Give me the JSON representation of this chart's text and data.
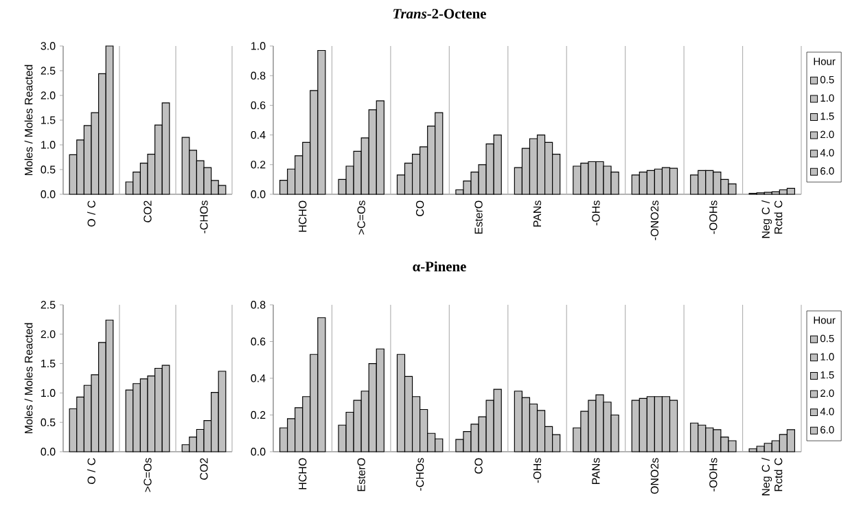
{
  "chart_data": [
    {
      "type": "bar",
      "ylabel": "Moles / Moles Reacted",
      "categories": [
        "O / C",
        "CO2",
        "-CHOs"
      ],
      "grid": "x",
      "ylim": [
        0,
        3
      ],
      "yticks": [
        {
          "value": 0,
          "label": "0.0"
        },
        {
          "value": 0.5,
          "label": "0.5"
        },
        {
          "value": 1,
          "label": "1.0"
        },
        {
          "value": 1.5,
          "label": "1.5"
        },
        {
          "value": 2,
          "label": "2.0"
        },
        {
          "value": 2.5,
          "label": "2.5"
        },
        {
          "value": 3,
          "label": "3.0"
        }
      ],
      "series": [
        {
          "color": "#c0c0c0",
          "values": [
            0.8,
            0.25,
            1.15
          ]
        },
        {
          "color": "#c0c0c0",
          "values": [
            1.1,
            0.45,
            0.89
          ]
        },
        {
          "color": "#c0c0c0",
          "values": [
            1.39,
            0.63,
            0.68
          ]
        },
        {
          "color": "#c0c0c0",
          "values": [
            1.65,
            0.81,
            0.54
          ]
        },
        {
          "color": "#c0c0c0",
          "values": [
            2.44,
            1.4,
            0.28
          ]
        },
        {
          "color": "#c0c0c0",
          "values": [
            3.0,
            1.85,
            0.18
          ]
        }
      ]
    },
    {
      "type": "bar",
      "title": "*Trans*-2-Octene",
      "categories": [
        "HCHO",
        ">C=Os",
        "CO",
        "EsterO",
        "PANs",
        "-OHs",
        "-ONO2s",
        "-OOHs",
        "Neg C / Rctd C"
      ],
      "grid": "x",
      "legend": "right",
      "legend_title": "Hour",
      "ylim": [
        0,
        1
      ],
      "yticks": [
        {
          "value": 0,
          "label": "0.0"
        },
        {
          "value": 0.2,
          "label": "0.2"
        },
        {
          "value": 0.4,
          "label": "0.4"
        },
        {
          "value": 0.6,
          "label": "0.6"
        },
        {
          "value": 0.8,
          "label": "0.8"
        },
        {
          "value": 1,
          "label": "1.0"
        }
      ],
      "series": [
        {
          "name": "0.5",
          "color": "#c0c0c0",
          "values": [
            0.094,
            0.1,
            0.13,
            0.03,
            0.18,
            0.19,
            0.13,
            0.13,
            0.006
          ]
        },
        {
          "name": "1.0",
          "color": "#c0c0c0",
          "values": [
            0.17,
            0.19,
            0.21,
            0.09,
            0.31,
            0.21,
            0.15,
            0.16,
            0.01
          ]
        },
        {
          "name": "1.5",
          "color": "#c0c0c0",
          "values": [
            0.26,
            0.29,
            0.27,
            0.15,
            0.375,
            0.22,
            0.16,
            0.16,
            0.013
          ]
        },
        {
          "name": "2.0",
          "color": "#c0c0c0",
          "values": [
            0.35,
            0.38,
            0.32,
            0.2,
            0.4,
            0.22,
            0.17,
            0.15,
            0.017
          ]
        },
        {
          "name": "4.0",
          "color": "#c0c0c0",
          "values": [
            0.7,
            0.57,
            0.46,
            0.34,
            0.35,
            0.19,
            0.18,
            0.1,
            0.03
          ]
        },
        {
          "name": "6.0",
          "color": "#c0c0c0",
          "values": [
            0.97,
            0.63,
            0.55,
            0.4,
            0.27,
            0.15,
            0.175,
            0.07,
            0.04
          ]
        }
      ]
    },
    {
      "type": "bar",
      "ylabel": "Moles / Moles Reacted",
      "categories": [
        "O / C",
        ">C=Os",
        "CO2"
      ],
      "grid": "x",
      "ylim": [
        0,
        2.5
      ],
      "yticks": [
        {
          "value": 0,
          "label": "0.0"
        },
        {
          "value": 0.5,
          "label": "0.5"
        },
        {
          "value": 1,
          "label": "1.0"
        },
        {
          "value": 1.5,
          "label": "1.5"
        },
        {
          "value": 2,
          "label": "2.0"
        },
        {
          "value": 2.5,
          "label": "2.5"
        }
      ],
      "series": [
        {
          "color": "#c0c0c0",
          "values": [
            0.73,
            1.05,
            0.12
          ]
        },
        {
          "color": "#c0c0c0",
          "values": [
            0.93,
            1.16,
            0.25
          ]
        },
        {
          "color": "#c0c0c0",
          "values": [
            1.13,
            1.24,
            0.38
          ]
        },
        {
          "color": "#c0c0c0",
          "values": [
            1.31,
            1.29,
            0.53
          ]
        },
        {
          "color": "#c0c0c0",
          "values": [
            1.86,
            1.42,
            1.01
          ]
        },
        {
          "color": "#c0c0c0",
          "values": [
            2.24,
            1.47,
            1.37
          ]
        }
      ]
    },
    {
      "type": "bar",
      "title": "α-Pinene",
      "categories": [
        "HCHO",
        "EsterO",
        "-CHOs",
        "CO",
        "-OHs",
        "PANs",
        "ONO2s",
        "-OOHs",
        "Neg C / Rctd C"
      ],
      "grid": "x",
      "legend": "right",
      "legend_title": "Hour",
      "ylim": [
        0,
        0.8
      ],
      "yticks": [
        {
          "value": 0,
          "label": "0.0"
        },
        {
          "value": 0.2,
          "label": "0.2"
        },
        {
          "value": 0.4,
          "label": "0.4"
        },
        {
          "value": 0.6,
          "label": "0.6"
        },
        {
          "value": 0.8,
          "label": "0.8"
        }
      ],
      "series": [
        {
          "name": "0.5",
          "color": "#c0c0c0",
          "values": [
            0.13,
            0.145,
            0.53,
            0.067,
            0.33,
            0.13,
            0.28,
            0.156,
            0.016
          ]
        },
        {
          "name": "1.0",
          "color": "#c0c0c0",
          "values": [
            0.18,
            0.215,
            0.41,
            0.11,
            0.295,
            0.22,
            0.29,
            0.145,
            0.03
          ]
        },
        {
          "name": "1.5",
          "color": "#c0c0c0",
          "values": [
            0.24,
            0.28,
            0.3,
            0.15,
            0.26,
            0.28,
            0.3,
            0.13,
            0.046
          ]
        },
        {
          "name": "2.0",
          "color": "#c0c0c0",
          "values": [
            0.3,
            0.33,
            0.23,
            0.19,
            0.225,
            0.31,
            0.3,
            0.12,
            0.06
          ]
        },
        {
          "name": "4.0",
          "color": "#c0c0c0",
          "values": [
            0.53,
            0.48,
            0.1,
            0.28,
            0.137,
            0.27,
            0.3,
            0.08,
            0.094
          ]
        },
        {
          "name": "6.0",
          "color": "#c0c0c0",
          "values": [
            0.73,
            0.56,
            0.07,
            0.34,
            0.093,
            0.2,
            0.28,
            0.06,
            0.12
          ]
        }
      ]
    }
  ]
}
